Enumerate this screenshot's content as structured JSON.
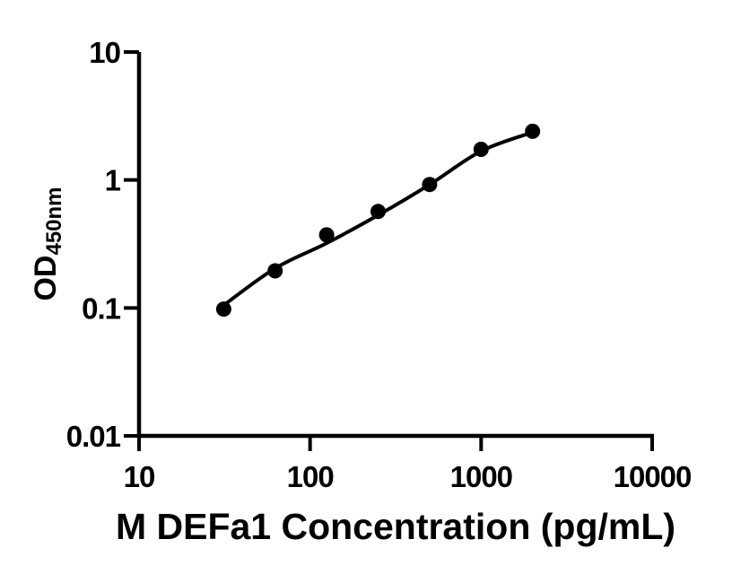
{
  "figure": {
    "background": "#ffffff",
    "foreground": "#000000"
  },
  "chart_data": {
    "type": "scatter",
    "scale": "log-log",
    "title": "",
    "xlabel": "M DEFa1 Concentration (pg/mL)",
    "ylabel": "OD",
    "ylabel_subscript": "450nm",
    "xlim": [
      10,
      10000
    ],
    "ylim": [
      0.01,
      10
    ],
    "x_ticks": [
      10,
      100,
      1000,
      10000
    ],
    "x_tick_labels": [
      "10",
      "100",
      "1000",
      "10000"
    ],
    "y_ticks": [
      10,
      1,
      0.1,
      0.01
    ],
    "y_tick_labels": [
      "10",
      "1",
      "0.1",
      "0.01"
    ],
    "grid": false,
    "legend": null,
    "marker_color": "#000000",
    "line_color": "#000000",
    "series": [
      {
        "name": "standard-points",
        "x": [
          31.25,
          62.5,
          125,
          250,
          500,
          1000,
          2000
        ],
        "y": [
          0.098,
          0.195,
          0.372,
          0.567,
          0.922,
          1.736,
          2.399
        ]
      }
    ],
    "fit_curve": {
      "name": "four-parameter-fit",
      "x": [
        31.25,
        62.5,
        125,
        250,
        500,
        1000,
        2000
      ],
      "y": [
        0.105,
        0.204,
        0.321,
        0.531,
        0.92,
        1.68,
        2.36
      ]
    }
  }
}
